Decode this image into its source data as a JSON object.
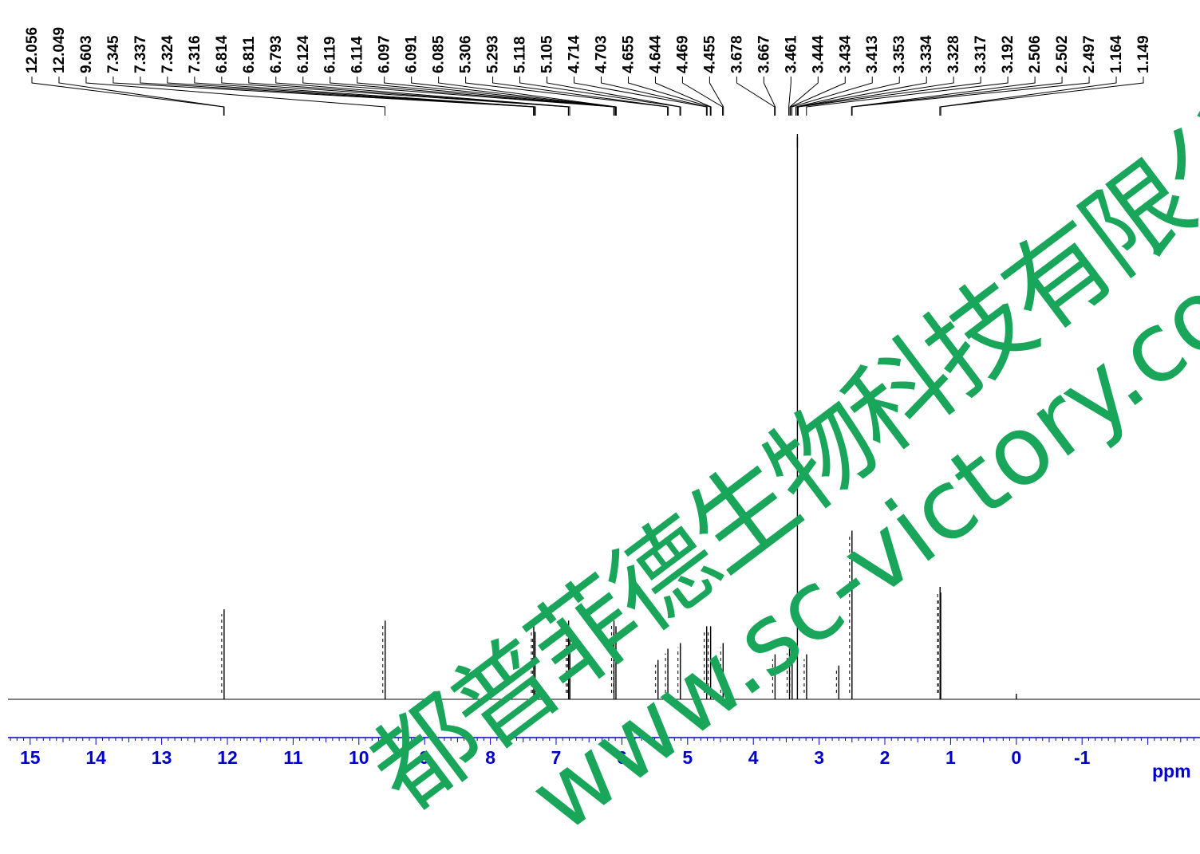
{
  "chart_data": {
    "type": "line",
    "title": "",
    "xlabel": "ppm",
    "ylabel": "",
    "xlim": [
      15.4,
      -2.9
    ],
    "x_ticks": [
      15,
      14,
      13,
      12,
      11,
      10,
      9,
      8,
      7,
      6,
      5,
      4,
      3,
      2,
      1,
      0,
      -1
    ],
    "grid": false,
    "reversed_x": true,
    "peak_labels": [
      "12.056",
      "12.049",
      "9.603",
      "7.345",
      "7.337",
      "7.324",
      "7.316",
      "6.814",
      "6.811",
      "6.793",
      "6.124",
      "6.119",
      "6.114",
      "6.097",
      "6.091",
      "6.085",
      "5.306",
      "5.293",
      "5.118",
      "5.105",
      "4.714",
      "4.703",
      "4.655",
      "4.644",
      "4.469",
      "4.455",
      "3.678",
      "3.667",
      "3.461",
      "3.444",
      "3.434",
      "3.413",
      "3.353",
      "3.334",
      "3.328",
      "3.317",
      "3.192",
      "2.506",
      "2.502",
      "2.497",
      "1.164",
      "1.149"
    ],
    "peaks": [
      {
        "ppm": 12.05,
        "height": 0.16
      },
      {
        "ppm": 9.6,
        "height": 0.14
      },
      {
        "ppm": 7.34,
        "height": 0.13
      },
      {
        "ppm": 7.32,
        "height": 0.12
      },
      {
        "ppm": 6.81,
        "height": 0.14
      },
      {
        "ppm": 6.79,
        "height": 0.12
      },
      {
        "ppm": 6.12,
        "height": 0.14
      },
      {
        "ppm": 6.09,
        "height": 0.13
      },
      {
        "ppm": 5.45,
        "height": 0.07
      },
      {
        "ppm": 5.3,
        "height": 0.09
      },
      {
        "ppm": 5.11,
        "height": 0.1
      },
      {
        "ppm": 4.71,
        "height": 0.13
      },
      {
        "ppm": 4.65,
        "height": 0.13
      },
      {
        "ppm": 4.46,
        "height": 0.1
      },
      {
        "ppm": 3.67,
        "height": 0.08
      },
      {
        "ppm": 3.45,
        "height": 0.09
      },
      {
        "ppm": 3.41,
        "height": 0.07
      },
      {
        "ppm": 3.33,
        "height": 1.0
      },
      {
        "ppm": 3.19,
        "height": 0.08
      },
      {
        "ppm": 2.7,
        "height": 0.06
      },
      {
        "ppm": 2.5,
        "height": 0.3
      },
      {
        "ppm": 1.16,
        "height": 0.2
      },
      {
        "ppm": 1.15,
        "height": 0.19
      },
      {
        "ppm": 0.0,
        "height": 0.01
      }
    ]
  },
  "watermark": {
    "text_cn": "都普菲德生物科技有限公",
    "text_url": "www.sc-victory.com",
    "color": "#1aa65a"
  },
  "colors": {
    "axis": "#0000cc",
    "spectrum": "#000000"
  }
}
